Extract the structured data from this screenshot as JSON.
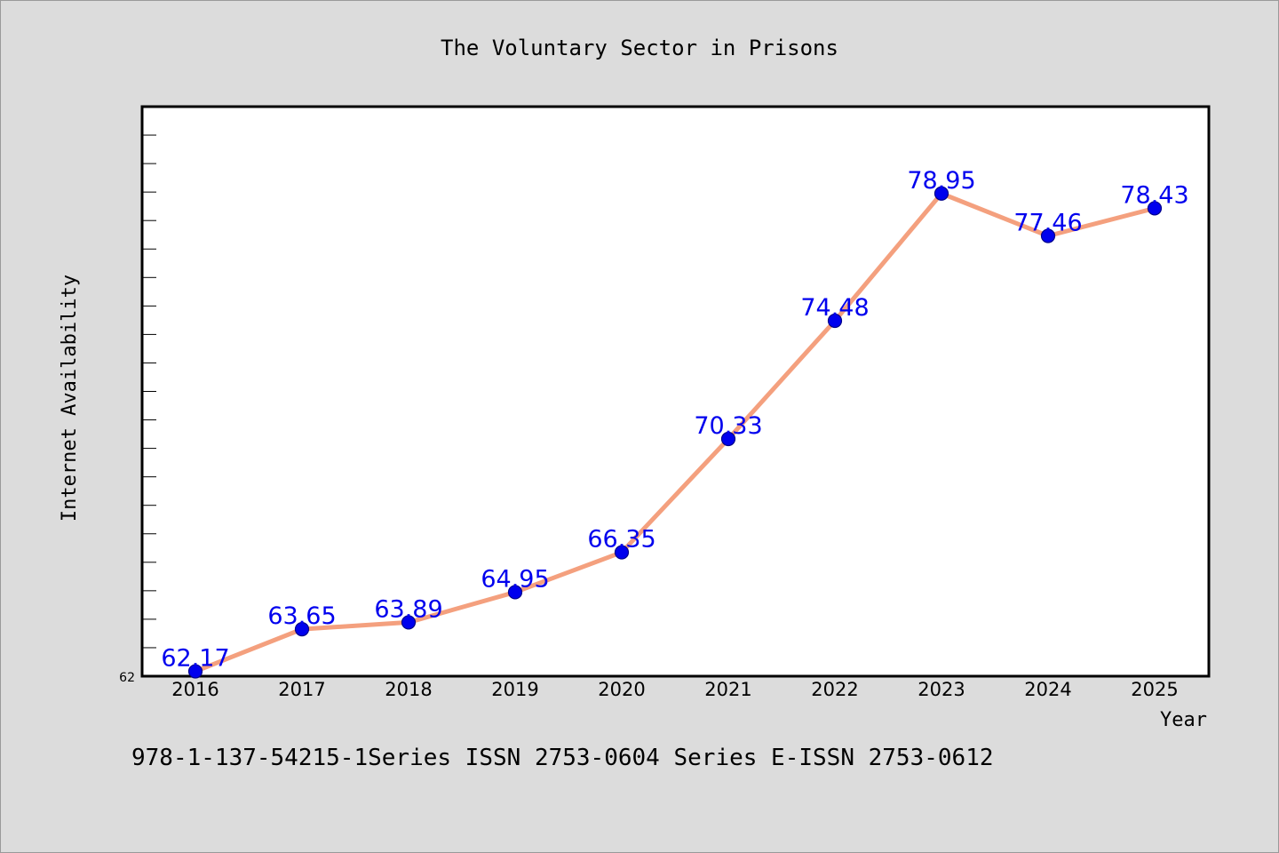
{
  "chart_data": {
    "type": "line",
    "title": "The Voluntary Sector in Prisons",
    "xlabel": "Year",
    "ylabel": "Internet Availability",
    "footer": "978-1-137-54215-1Series ISSN 2753-0604 Series E-ISSN 2753-0612",
    "categories": [
      "2016",
      "2017",
      "2018",
      "2019",
      "2020",
      "2021",
      "2022",
      "2023",
      "2024",
      "2025"
    ],
    "series": [
      {
        "values": [
          62.17,
          63.65,
          63.89,
          64.95,
          66.35,
          70.33,
          74.48,
          78.95,
          77.46,
          78.43
        ],
        "labels": [
          "62.17",
          "63.65",
          "63.89",
          "64.95",
          "66.35",
          "70.33",
          "74.48",
          "78.95",
          "77.46",
          "78.43"
        ]
      }
    ],
    "y_tick_labels": [
      "62"
    ],
    "ylim": [
      62,
      82
    ],
    "grid": false,
    "colors": {
      "background": "#dcdcdc",
      "plot_background": "#ffffff",
      "line": "#f4a07e",
      "marker": "#0000ee",
      "data_label": "#0000ee",
      "text": "#000000"
    }
  }
}
